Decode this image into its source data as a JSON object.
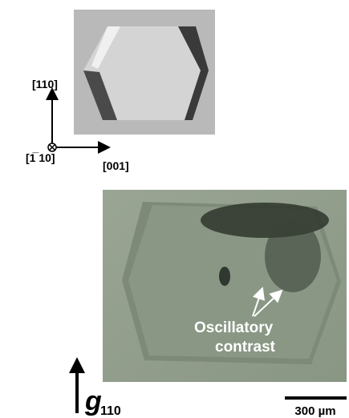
{
  "axes": {
    "up_label": "[110]",
    "into_label": "[1̅ 10]",
    "right_label": "[001]"
  },
  "annotation": {
    "line1": "Oscillatory",
    "line2": "contrast"
  },
  "g_vector": {
    "symbol": "g",
    "subscript": "110"
  },
  "scale_bar": {
    "label": "300 µm"
  }
}
